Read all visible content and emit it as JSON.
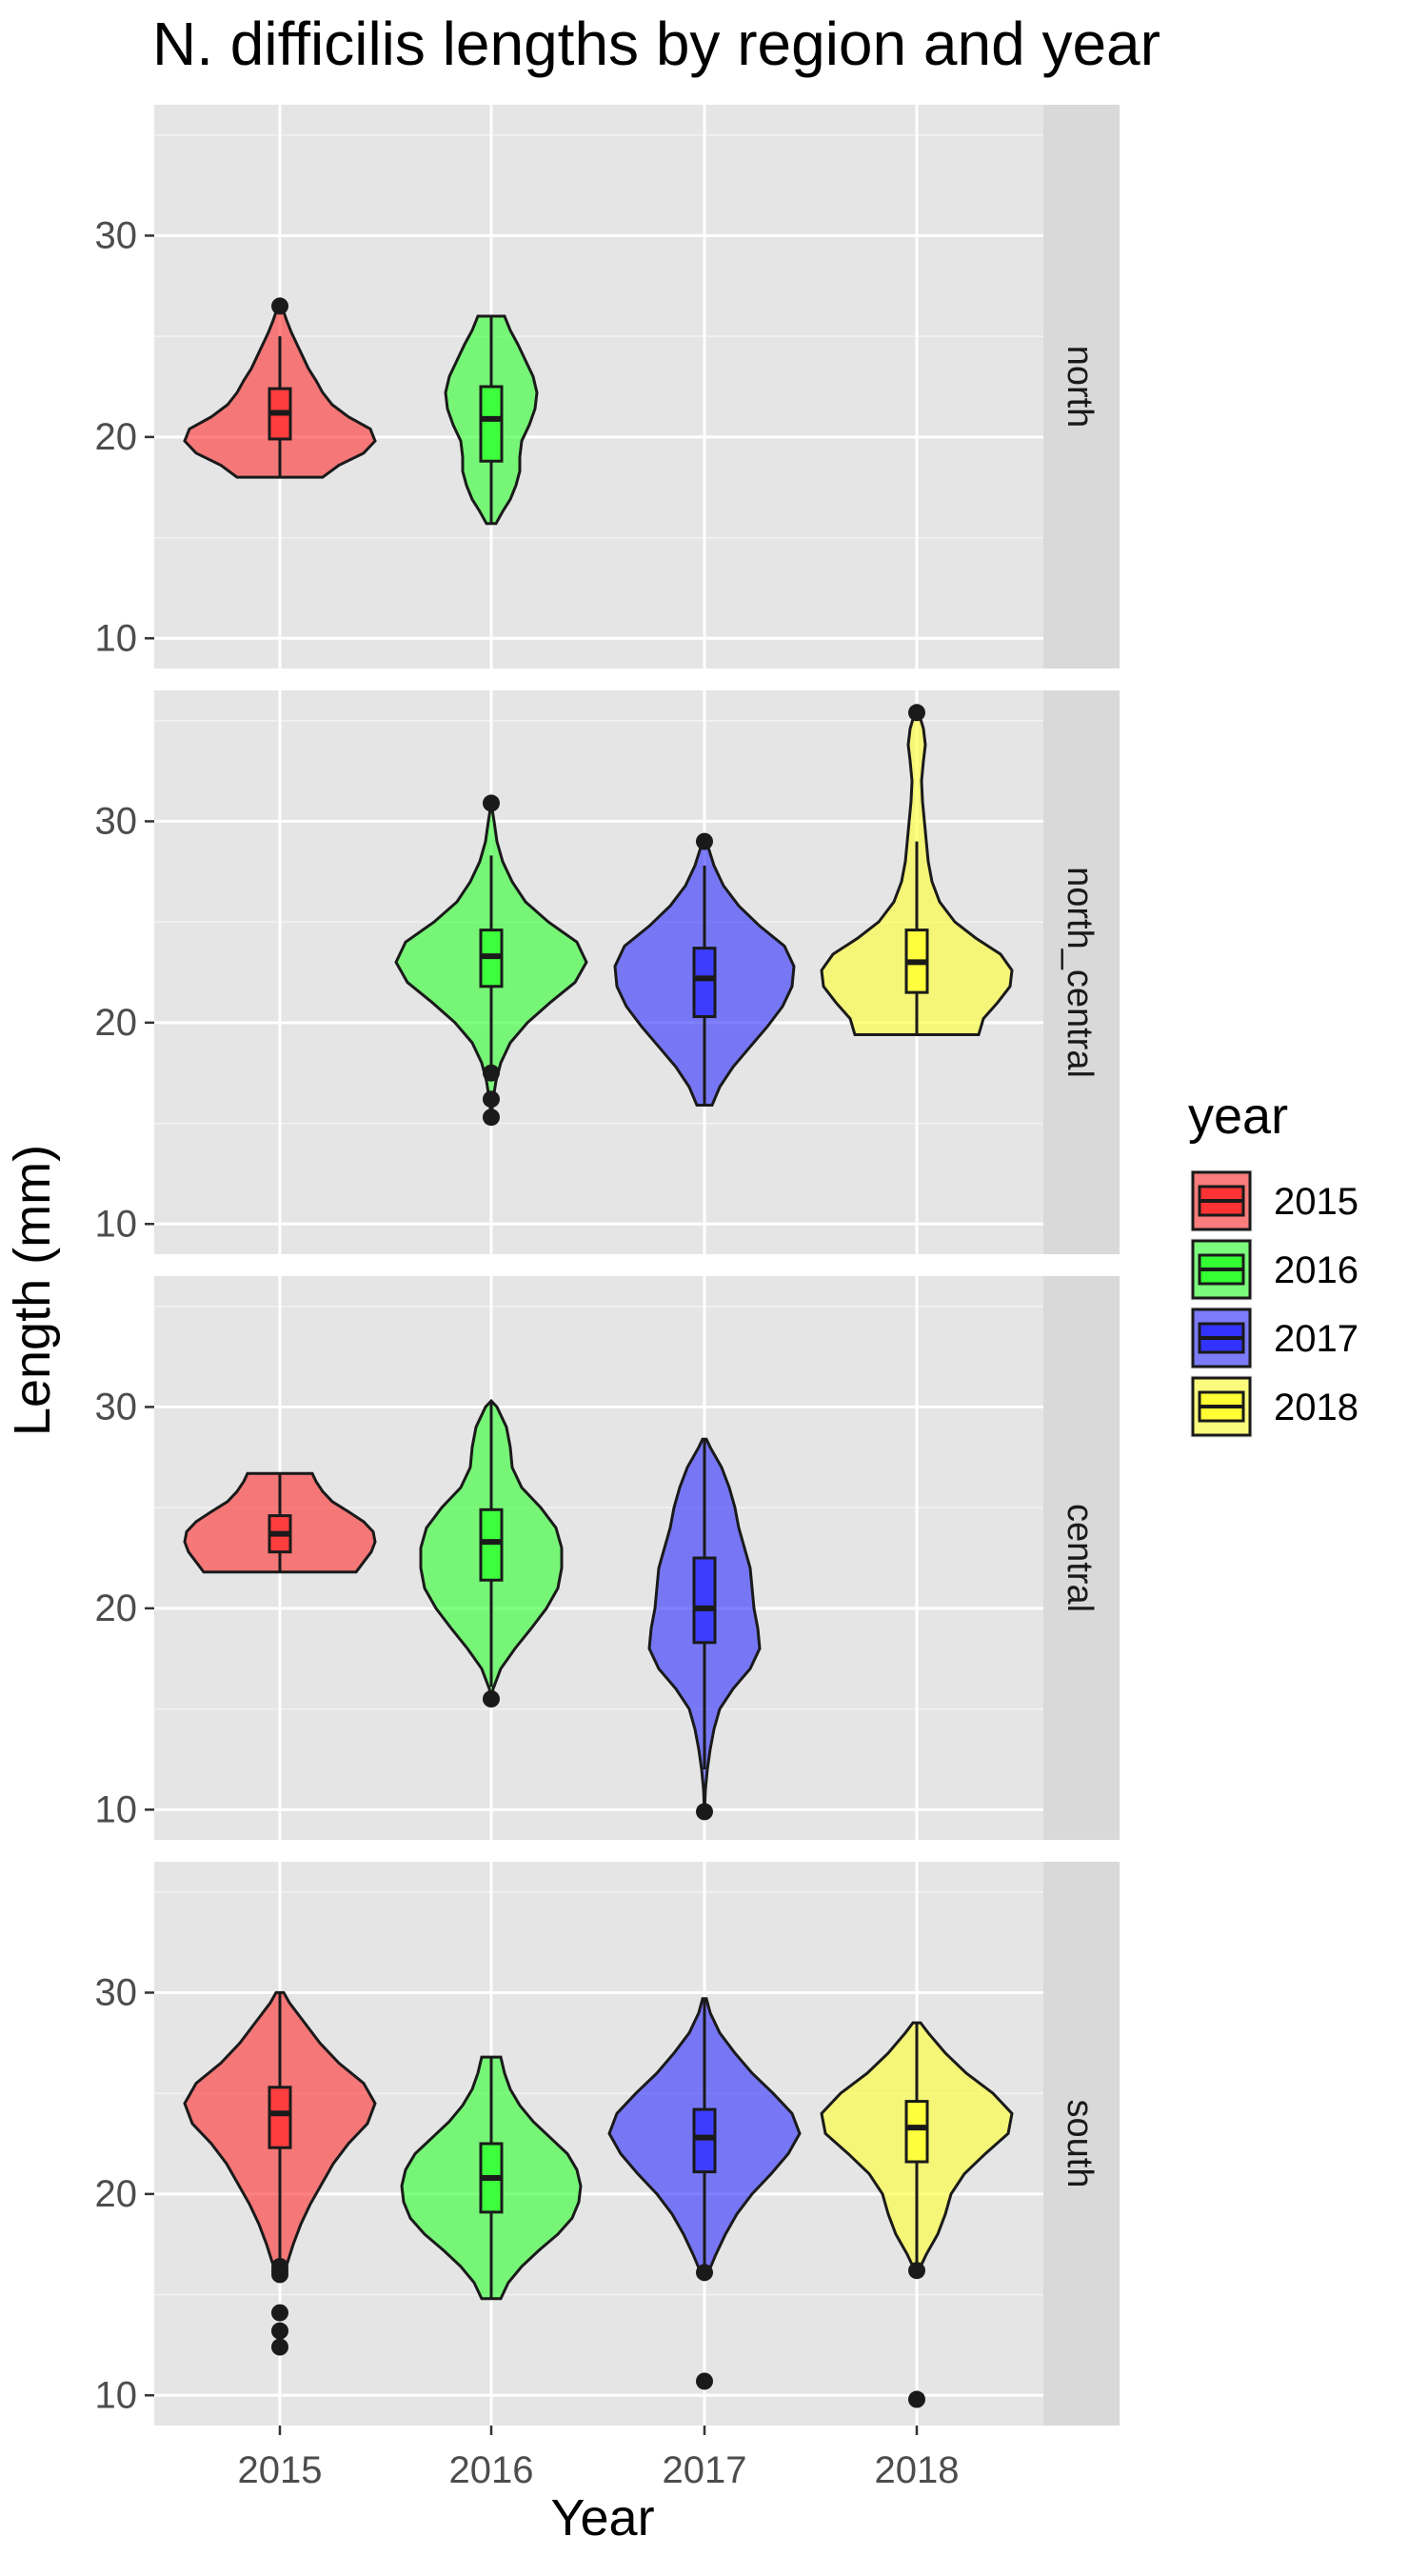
{
  "chart_data": {
    "type": "violin",
    "title": "N. difficilis lengths by region and year",
    "xlabel": "Year",
    "ylabel": "Length (mm)",
    "categories": [
      "2015",
      "2016",
      "2017",
      "2018"
    ],
    "yticks": [
      10,
      20,
      30
    ],
    "ylim": [
      8.5,
      36.5
    ],
    "grid": true,
    "legend": {
      "title": "year",
      "position": "right",
      "entries": [
        {
          "label": "2015",
          "color": "#FF3333"
        },
        {
          "label": "2016",
          "color": "#33FF33"
        },
        {
          "label": "2017",
          "color": "#3333FF"
        },
        {
          "label": "2018",
          "color": "#FFFF33"
        }
      ]
    },
    "panels": [
      {
        "label": "north",
        "groups": [
          {
            "year": "2015",
            "min": 18.0,
            "max": 26.5,
            "q1": 19.9,
            "median": 21.2,
            "q3": 22.4,
            "whisker_low": 18.0,
            "whisker_high": 25.0,
            "outliers": [
              26.5
            ],
            "density": [
              [
                18.0,
                0.45
              ],
              [
                18.6,
                0.62
              ],
              [
                19.2,
                0.88
              ],
              [
                19.8,
                1.0
              ],
              [
                20.4,
                0.95
              ],
              [
                21.0,
                0.72
              ],
              [
                21.6,
                0.55
              ],
              [
                22.2,
                0.45
              ],
              [
                22.8,
                0.38
              ],
              [
                23.4,
                0.3
              ],
              [
                24.0,
                0.24
              ],
              [
                24.6,
                0.18
              ],
              [
                25.2,
                0.12
              ],
              [
                25.8,
                0.07
              ],
              [
                26.5,
                0.02
              ]
            ]
          },
          {
            "year": "2016",
            "min": 15.7,
            "max": 26.0,
            "q1": 18.8,
            "median": 20.9,
            "q3": 22.5,
            "whisker_low": 15.7,
            "whisker_high": 26.0,
            "outliers": [],
            "density": [
              [
                15.7,
                0.05
              ],
              [
                16.3,
                0.12
              ],
              [
                16.9,
                0.2
              ],
              [
                17.6,
                0.26
              ],
              [
                18.3,
                0.3
              ],
              [
                19.0,
                0.3
              ],
              [
                19.8,
                0.32
              ],
              [
                20.6,
                0.4
              ],
              [
                21.4,
                0.46
              ],
              [
                22.2,
                0.48
              ],
              [
                23.0,
                0.44
              ],
              [
                23.8,
                0.36
              ],
              [
                24.6,
                0.28
              ],
              [
                25.3,
                0.2
              ],
              [
                26.0,
                0.14
              ]
            ]
          }
        ]
      },
      {
        "label": "north_central",
        "groups": [
          {
            "year": "2016",
            "min": 15.3,
            "max": 30.9,
            "q1": 21.8,
            "median": 23.3,
            "q3": 24.6,
            "whisker_low": 17.7,
            "whisker_high": 28.3,
            "outliers": [
              30.9,
              17.5,
              16.2,
              15.3
            ],
            "density": [
              [
                15.3,
                0.0
              ],
              [
                16.2,
                0.02
              ],
              [
                17.1,
                0.05
              ],
              [
                18.0,
                0.1
              ],
              [
                19.0,
                0.2
              ],
              [
                20.0,
                0.38
              ],
              [
                21.0,
                0.62
              ],
              [
                22.0,
                0.88
              ],
              [
                23.0,
                1.0
              ],
              [
                24.0,
                0.9
              ],
              [
                25.0,
                0.6
              ],
              [
                26.0,
                0.36
              ],
              [
                27.0,
                0.22
              ],
              [
                28.0,
                0.12
              ],
              [
                29.0,
                0.06
              ],
              [
                30.0,
                0.03
              ],
              [
                30.9,
                0.0
              ]
            ]
          },
          {
            "year": "2017",
            "min": 15.9,
            "max": 29.0,
            "q1": 20.3,
            "median": 22.2,
            "q3": 23.7,
            "whisker_low": 15.9,
            "whisker_high": 27.8,
            "outliers": [
              29.0
            ],
            "density": [
              [
                15.9,
                0.08
              ],
              [
                16.8,
                0.16
              ],
              [
                17.8,
                0.3
              ],
              [
                18.8,
                0.48
              ],
              [
                19.8,
                0.66
              ],
              [
                20.8,
                0.82
              ],
              [
                21.8,
                0.92
              ],
              [
                22.8,
                0.94
              ],
              [
                23.8,
                0.84
              ],
              [
                24.8,
                0.58
              ],
              [
                25.8,
                0.36
              ],
              [
                26.8,
                0.2
              ],
              [
                27.8,
                0.1
              ],
              [
                29.0,
                0.02
              ]
            ]
          },
          {
            "year": "2018",
            "min": 19.4,
            "max": 35.4,
            "q1": 21.5,
            "median": 23.0,
            "q3": 24.6,
            "whisker_low": 19.4,
            "whisker_high": 29.0,
            "outliers": [
              35.4
            ],
            "density": [
              [
                19.4,
                0.65
              ],
              [
                20.2,
                0.7
              ],
              [
                21.0,
                0.85
              ],
              [
                21.8,
                0.98
              ],
              [
                22.6,
                1.0
              ],
              [
                23.4,
                0.88
              ],
              [
                24.2,
                0.62
              ],
              [
                25.0,
                0.4
              ],
              [
                26.0,
                0.24
              ],
              [
                27.0,
                0.16
              ],
              [
                28.0,
                0.12
              ],
              [
                29.0,
                0.1
              ],
              [
                30.0,
                0.08
              ],
              [
                31.0,
                0.06
              ],
              [
                32.0,
                0.05
              ],
              [
                33.0,
                0.07
              ],
              [
                33.8,
                0.09
              ],
              [
                34.6,
                0.07
              ],
              [
                35.4,
                0.02
              ]
            ]
          }
        ]
      },
      {
        "label": "central",
        "groups": [
          {
            "year": "2015",
            "min": 21.8,
            "max": 26.7,
            "q1": 22.8,
            "median": 23.7,
            "q3": 24.6,
            "whisker_low": 21.8,
            "whisker_high": 26.7,
            "outliers": [],
            "density": [
              [
                21.8,
                0.8
              ],
              [
                22.3,
                0.88
              ],
              [
                22.8,
                0.96
              ],
              [
                23.3,
                1.0
              ],
              [
                23.8,
                0.98
              ],
              [
                24.3,
                0.88
              ],
              [
                24.8,
                0.72
              ],
              [
                25.3,
                0.55
              ],
              [
                25.8,
                0.45
              ],
              [
                26.3,
                0.38
              ],
              [
                26.7,
                0.34
              ]
            ]
          },
          {
            "year": "2016",
            "min": 15.5,
            "max": 30.3,
            "q1": 21.4,
            "median": 23.3,
            "q3": 24.9,
            "whisker_low": 16.1,
            "whisker_high": 30.3,
            "outliers": [
              15.5
            ],
            "density": [
              [
                15.5,
                0.0
              ],
              [
                16.0,
                0.02
              ],
              [
                17.0,
                0.1
              ],
              [
                18.0,
                0.25
              ],
              [
                19.0,
                0.42
              ],
              [
                20.0,
                0.58
              ],
              [
                21.0,
                0.7
              ],
              [
                22.0,
                0.74
              ],
              [
                23.0,
                0.74
              ],
              [
                24.0,
                0.68
              ],
              [
                25.0,
                0.52
              ],
              [
                26.0,
                0.32
              ],
              [
                27.0,
                0.22
              ],
              [
                28.0,
                0.2
              ],
              [
                29.0,
                0.16
              ],
              [
                30.0,
                0.06
              ],
              [
                30.3,
                0.0
              ]
            ]
          },
          {
            "year": "2017",
            "min": 9.9,
            "max": 28.4,
            "q1": 18.3,
            "median": 20.0,
            "q3": 22.5,
            "whisker_low": 12.0,
            "whisker_high": 28.4,
            "outliers": [
              9.9
            ],
            "density": [
              [
                9.9,
                0.0
              ],
              [
                11.0,
                0.01
              ],
              [
                12.0,
                0.03
              ],
              [
                13.0,
                0.06
              ],
              [
                14.0,
                0.1
              ],
              [
                15.0,
                0.16
              ],
              [
                16.0,
                0.3
              ],
              [
                17.0,
                0.48
              ],
              [
                18.0,
                0.58
              ],
              [
                19.0,
                0.56
              ],
              [
                20.0,
                0.52
              ],
              [
                21.0,
                0.5
              ],
              [
                22.0,
                0.48
              ],
              [
                23.0,
                0.42
              ],
              [
                24.0,
                0.36
              ],
              [
                25.0,
                0.32
              ],
              [
                26.0,
                0.26
              ],
              [
                27.0,
                0.18
              ],
              [
                28.0,
                0.06
              ],
              [
                28.4,
                0.02
              ]
            ]
          }
        ]
      },
      {
        "label": "south",
        "groups": [
          {
            "year": "2015",
            "min": 12.4,
            "max": 30.0,
            "q1": 22.3,
            "median": 24.0,
            "q3": 25.3,
            "whisker_low": 16.6,
            "whisker_high": 30.0,
            "outliers": [
              16.4,
              16.2,
              16.0,
              14.1,
              13.2,
              12.4
            ],
            "density": [
              [
                16.6,
                0.08
              ],
              [
                17.5,
                0.14
              ],
              [
                18.5,
                0.22
              ],
              [
                19.5,
                0.32
              ],
              [
                20.5,
                0.44
              ],
              [
                21.5,
                0.56
              ],
              [
                22.5,
                0.72
              ],
              [
                23.5,
                0.92
              ],
              [
                24.5,
                1.0
              ],
              [
                25.5,
                0.88
              ],
              [
                26.5,
                0.62
              ],
              [
                27.5,
                0.42
              ],
              [
                28.5,
                0.26
              ],
              [
                29.5,
                0.1
              ],
              [
                30.0,
                0.04
              ]
            ]
          },
          {
            "year": "2016",
            "min": 14.8,
            "max": 26.8,
            "q1": 19.1,
            "median": 20.8,
            "q3": 22.5,
            "whisker_low": 14.8,
            "whisker_high": 26.8,
            "outliers": [],
            "density": [
              [
                14.8,
                0.1
              ],
              [
                15.6,
                0.18
              ],
              [
                16.4,
                0.32
              ],
              [
                17.2,
                0.5
              ],
              [
                18.0,
                0.7
              ],
              [
                18.8,
                0.85
              ],
              [
                19.6,
                0.92
              ],
              [
                20.4,
                0.94
              ],
              [
                21.2,
                0.9
              ],
              [
                22.0,
                0.8
              ],
              [
                22.8,
                0.62
              ],
              [
                23.6,
                0.44
              ],
              [
                24.4,
                0.3
              ],
              [
                25.2,
                0.2
              ],
              [
                26.0,
                0.14
              ],
              [
                26.8,
                0.1
              ]
            ]
          },
          {
            "year": "2017",
            "min": 10.7,
            "max": 29.7,
            "q1": 21.1,
            "median": 22.8,
            "q3": 24.2,
            "whisker_low": 16.1,
            "whisker_high": 29.7,
            "outliers": [
              10.7,
              16.1
            ],
            "density": [
              [
                16.1,
                0.04
              ],
              [
                17.0,
                0.12
              ],
              [
                18.0,
                0.22
              ],
              [
                19.0,
                0.34
              ],
              [
                20.0,
                0.5
              ],
              [
                21.0,
                0.7
              ],
              [
                22.0,
                0.88
              ],
              [
                23.0,
                1.0
              ],
              [
                24.0,
                0.92
              ],
              [
                25.0,
                0.72
              ],
              [
                26.0,
                0.5
              ],
              [
                27.0,
                0.32
              ],
              [
                28.0,
                0.16
              ],
              [
                29.0,
                0.06
              ],
              [
                29.7,
                0.02
              ]
            ]
          },
          {
            "year": "2018",
            "min": 9.8,
            "max": 28.5,
            "q1": 21.6,
            "median": 23.3,
            "q3": 24.6,
            "whisker_low": 16.2,
            "whisker_high": 28.5,
            "outliers": [
              9.8,
              16.2
            ],
            "density": [
              [
                16.2,
                0.02
              ],
              [
                17.0,
                0.1
              ],
              [
                18.0,
                0.22
              ],
              [
                19.0,
                0.3
              ],
              [
                20.0,
                0.36
              ],
              [
                21.0,
                0.5
              ],
              [
                22.0,
                0.72
              ],
              [
                23.0,
                0.96
              ],
              [
                24.0,
                1.0
              ],
              [
                25.0,
                0.8
              ],
              [
                26.0,
                0.52
              ],
              [
                27.0,
                0.3
              ],
              [
                28.0,
                0.12
              ],
              [
                28.5,
                0.04
              ]
            ]
          }
        ]
      }
    ]
  }
}
